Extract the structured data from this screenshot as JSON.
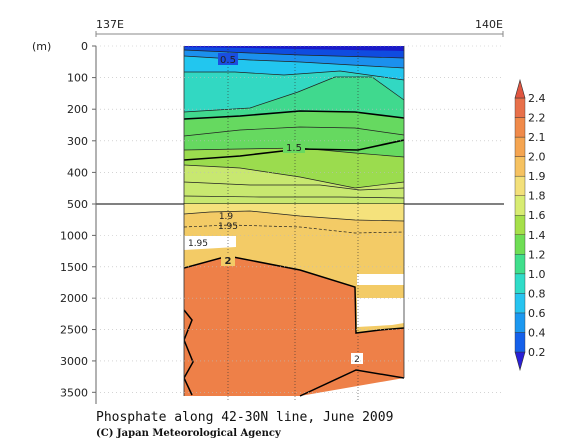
{
  "chart_data": {
    "type": "heatmap",
    "title": "Phosphate along 42-30N line, June 2009",
    "credit": "(C) Japan Meteorological Agency",
    "xlabel": "",
    "ylabel": "(m)",
    "x_ticks": [
      "137E",
      "140E"
    ],
    "y_ticks_upper": [
      0,
      100,
      200,
      300,
      400,
      500
    ],
    "y_ticks_lower": [
      1000,
      1500,
      2000,
      2500,
      3000,
      3500
    ],
    "ylim_upper": [
      0,
      500
    ],
    "ylim_lower": [
      500,
      3750
    ],
    "colorbar": {
      "levels": [
        0.2,
        0.4,
        0.6,
        0.8,
        1.0,
        1.2,
        1.4,
        1.6,
        1.8,
        1.9,
        2.0,
        2.1,
        2.2,
        2.4
      ],
      "colors": [
        "#2a1fd6",
        "#1560ea",
        "#1c98f0",
        "#27c4f0",
        "#30dcc8",
        "#40df8c",
        "#6fde55",
        "#a6e04a",
        "#d8ec72",
        "#f3e07a",
        "#f6c261",
        "#f5a551",
        "#f08a4a",
        "#e8704a",
        "#e05540"
      ]
    },
    "contour_labels": [
      "0.5",
      "1.5",
      "1.9",
      "1.95",
      "1.95",
      "2",
      "2"
    ]
  }
}
